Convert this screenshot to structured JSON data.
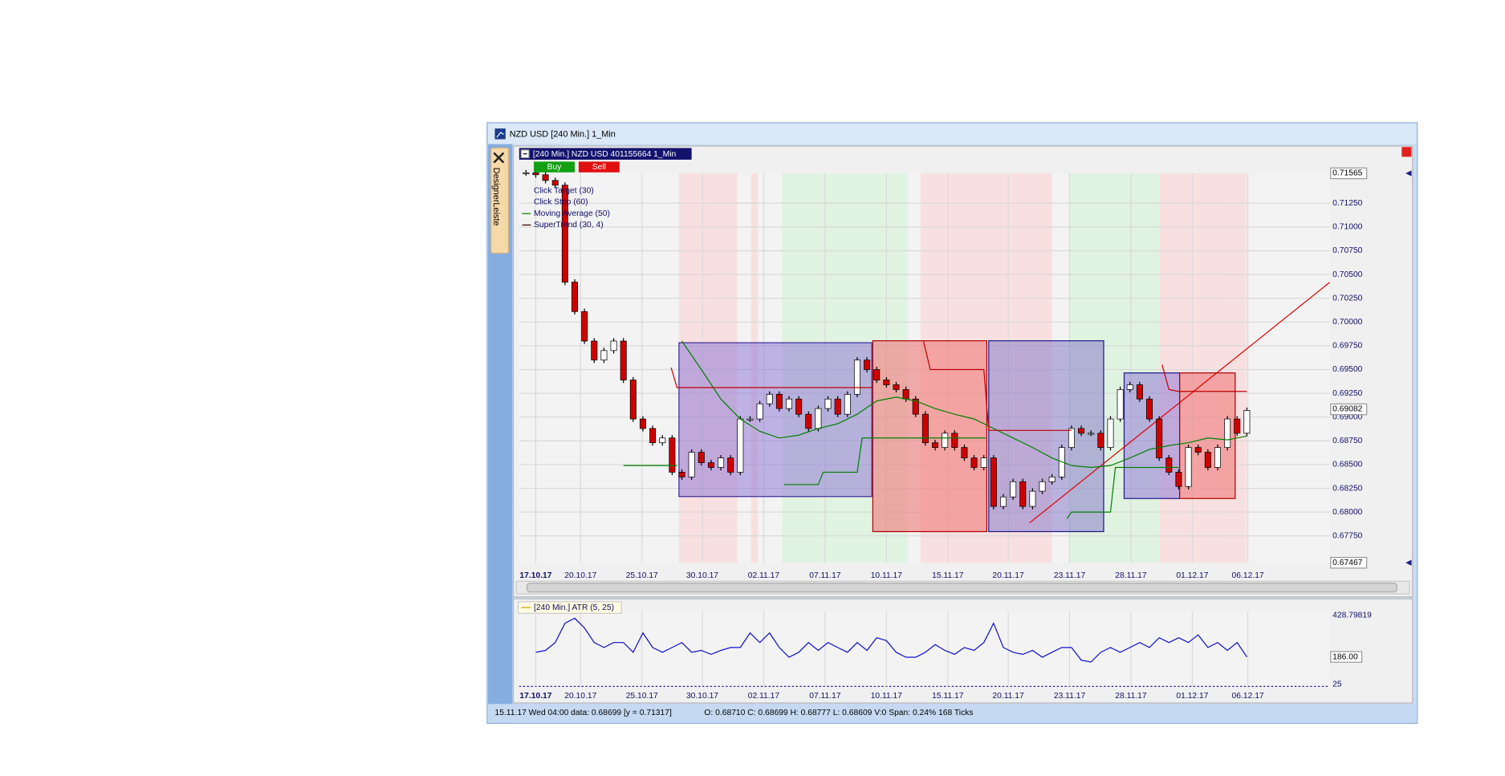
{
  "window": {
    "title": "NZD USD [240 Min.]  1_Min"
  },
  "sidebar": {
    "tab": "DesignerLeiste"
  },
  "price_panel": {
    "header": "[240 Min.] NZD USD   401155664 1_Min",
    "buttons": [
      "Buy",
      "Sell"
    ]
  },
  "atr_panel": {
    "header": "[240 Min.] ATR  (5, 25)"
  },
  "status_bar": {
    "cursor": "15.11.17 Wed  04:00 data: 0.68699 [y = 0.71317]",
    "ohlc": "O: 0.68710 C: 0.68699 H: 0.68777 L: 0.68609 V:0 Span: 0.24% 168 Ticks"
  },
  "chart_data": [
    {
      "type": "candlestick",
      "color_up": "#ffffff",
      "color_down": "#d00000",
      "values": [
        0.7157,
        0.7155,
        0.7149,
        0.7144,
        0.7042,
        0.7011,
        0.698,
        0.696,
        0.697,
        0.698,
        0.6939,
        0.6898,
        0.6888,
        0.6873,
        0.6878,
        0.6842,
        0.6837,
        0.6863,
        0.6852,
        0.6847,
        0.6857,
        0.6842,
        0.6898,
        0.6898,
        0.6914,
        0.6924,
        0.6909,
        0.6919,
        0.6903,
        0.6888,
        0.6909,
        0.6919,
        0.6903,
        0.6924,
        0.696,
        0.695,
        0.6939,
        0.6934,
        0.6929,
        0.6919,
        0.6903,
        0.6873,
        0.6868,
        0.6883,
        0.6868,
        0.6857,
        0.6847,
        0.6857,
        0.6806,
        0.6816,
        0.6832,
        0.6806,
        0.6822,
        0.6832,
        0.6837,
        0.6868,
        0.6888,
        0.6883,
        0.6883,
        0.6868,
        0.6898,
        0.6929,
        0.6934,
        0.6919,
        0.6898,
        0.6857,
        0.6842,
        0.6827,
        0.6868,
        0.6863,
        0.6847,
        0.6868,
        0.6898,
        0.6883,
        0.6907
      ],
      "last_price": 0.69082,
      "xlim": [
        0,
        75
      ],
      "xticks": [
        {
          "value": 1,
          "label": "17.10.17"
        },
        {
          "value": 5.6,
          "label": "20.10.17"
        },
        {
          "value": 11.9,
          "label": "25.10.17"
        },
        {
          "value": 18.1,
          "label": "30.10.17"
        },
        {
          "value": 24.4,
          "label": "02.11.17"
        },
        {
          "value": 30.7,
          "label": "07.11.17"
        },
        {
          "value": 37,
          "label": "10.11.17"
        },
        {
          "value": 43.3,
          "label": "15.11.17"
        },
        {
          "value": 49.5,
          "label": "20.11.17"
        },
        {
          "value": 55.8,
          "label": "23.11.17"
        },
        {
          "value": 62.1,
          "label": "28.11.17"
        },
        {
          "value": 68.4,
          "label": "01.12.17"
        },
        {
          "value": 74.1,
          "label": "06.12.17"
        }
      ],
      "ylim": [
        0.67467,
        0.71565
      ],
      "yticks": [
        {
          "value": 0.6775,
          "label": "0.67750"
        },
        {
          "value": 0.68,
          "label": "0.68000"
        },
        {
          "value": 0.6825,
          "label": "0.68250"
        },
        {
          "value": 0.685,
          "label": "0.68500"
        },
        {
          "value": 0.6875,
          "label": "0.68750"
        },
        {
          "value": 0.69,
          "label": "0.69000"
        },
        {
          "value": 0.6925,
          "label": "0.69250"
        },
        {
          "value": 0.695,
          "label": "0.69500"
        },
        {
          "value": 0.6975,
          "label": "0.69750"
        },
        {
          "value": 0.7,
          "label": "0.70000"
        },
        {
          "value": 0.7025,
          "label": "0.70250"
        },
        {
          "value": 0.705,
          "label": "0.70500"
        },
        {
          "value": 0.7075,
          "label": "0.70750"
        },
        {
          "value": 0.71,
          "label": "0.71000"
        },
        {
          "value": 0.7125,
          "label": "0.71250"
        }
      ],
      "grid": true,
      "indicators": [
        {
          "name": "Click Target  (30)"
        },
        {
          "name": "Click Stop  (60)"
        },
        {
          "name": "Moving Average  (50)",
          "color": "#008000",
          "x": [
            16,
            18,
            20,
            22,
            24,
            26,
            28,
            30,
            32,
            34,
            36,
            38,
            40,
            42,
            44,
            46,
            48,
            50,
            52,
            54,
            56,
            58,
            60,
            62,
            64,
            66,
            68,
            70,
            72,
            74
          ],
          "values": [
            0.698,
            0.695,
            0.6919,
            0.6898,
            0.6885,
            0.6878,
            0.6881,
            0.6888,
            0.6893,
            0.6903,
            0.6917,
            0.6921,
            0.6917,
            0.6909,
            0.6903,
            0.6898,
            0.6888,
            0.6878,
            0.6868,
            0.6857,
            0.6849,
            0.6847,
            0.6849,
            0.6857,
            0.6866,
            0.687,
            0.6873,
            0.6878,
            0.6876,
            0.688
          ]
        },
        {
          "name": "SuperTrend  (30, 4)",
          "color": "#300000",
          "colors": [
            "#008000",
            "#c00000",
            "#008000",
            "#c00000",
            "#008000",
            "#c00000"
          ],
          "x": [
            10,
            15.5,
            null,
            14.9,
            15.5,
            35.5,
            null,
            26.5,
            30,
            30.5,
            34,
            34.5,
            47.2,
            null,
            40.8,
            41.5,
            47,
            47.5,
            56,
            null,
            55.5,
            56,
            60,
            60.5,
            67,
            null,
            65.3,
            66,
            67,
            74
          ],
          "values": [
            0.6849,
            0.6849,
            null,
            0.6952,
            0.6931,
            0.6931,
            null,
            0.6829,
            0.6829,
            0.6842,
            0.6842,
            0.6878,
            0.6878,
            null,
            0.698,
            0.695,
            0.695,
            0.6886,
            0.6886,
            null,
            0.6793,
            0.68,
            0.68,
            0.6847,
            0.6847,
            null,
            0.6955,
            0.6929,
            0.6927,
            0.6927
          ]
        }
      ]
    },
    {
      "type": "line",
      "color": "#1010c8",
      "values": [
        null,
        213,
        224,
        270,
        383,
        412,
        355,
        270,
        241,
        270,
        270,
        213,
        326,
        241,
        213,
        241,
        270,
        213,
        224,
        201,
        224,
        241,
        241,
        326,
        270,
        326,
        241,
        184,
        213,
        270,
        224,
        270,
        241,
        213,
        270,
        224,
        298,
        281,
        213,
        184,
        184,
        213,
        258,
        224,
        201,
        241,
        224,
        270,
        383,
        241,
        213,
        201,
        224,
        184,
        213,
        241,
        241,
        167,
        156,
        213,
        241,
        213,
        241,
        270,
        241,
        298,
        270,
        298,
        270,
        315,
        241,
        270,
        224,
        270,
        186
      ],
      "last_value": 186,
      "last_value_label": "186.00",
      "ylim": [
        25,
        428.79819
      ],
      "yticks": [
        25,
        428.79819
      ]
    }
  ]
}
